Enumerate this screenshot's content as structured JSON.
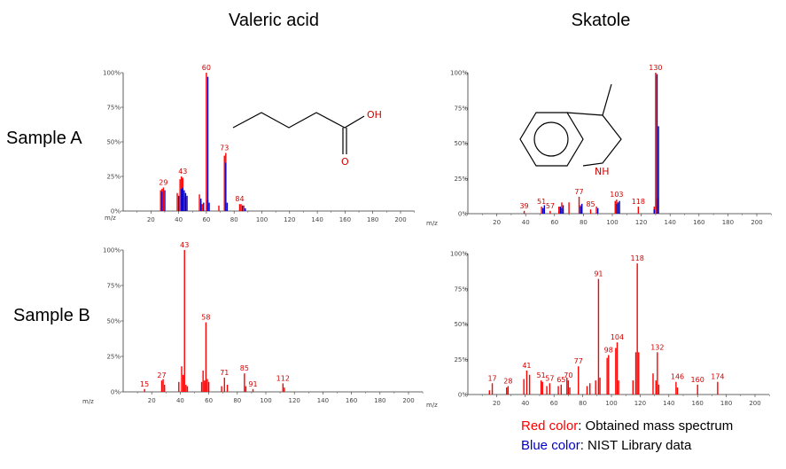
{
  "columns": [
    "Valeric acid",
    "Skatole"
  ],
  "rows": [
    "Sample A",
    "Sample B"
  ],
  "legend": {
    "red_word": "Red color",
    "red_rest": ": Obtained mass spectrum",
    "blue_word": "Blue color",
    "blue_rest": ": NIST Library data",
    "red_hex": "#ff0000",
    "blue_hex": "#0000cc"
  },
  "structures": {
    "acid_oh": "OH",
    "acid_o": "O",
    "indole_nh": "NH"
  },
  "chart_data": [
    {
      "type": "bar",
      "compound": "Valeric acid",
      "sample": "Sample A",
      "xlabel": "m/z",
      "xlim": [
        0,
        210
      ],
      "xticks": [
        20,
        40,
        60,
        80,
        100,
        120,
        140,
        160,
        180,
        200
      ],
      "ylim": [
        0,
        100
      ],
      "yticks": [
        "0%",
        "25%",
        "50%",
        "75%",
        "100%"
      ],
      "series": [
        {
          "name": "Obtained",
          "color": "#ff0000",
          "x": [
            27,
            28,
            29,
            39,
            41,
            42,
            43,
            45,
            55,
            56,
            57,
            60,
            61,
            69,
            73,
            74,
            84,
            85,
            87
          ],
          "y": [
            15,
            16,
            17,
            13,
            23,
            25,
            24,
            10,
            12,
            7,
            5,
            100,
            8,
            4,
            40,
            42,
            5,
            5,
            4
          ]
        },
        {
          "name": "NIST",
          "color": "#0000cc",
          "x": [
            27,
            29,
            39,
            41,
            42,
            43,
            44,
            45,
            55,
            57,
            60,
            61,
            73,
            74,
            85,
            87
          ],
          "y": [
            14,
            15,
            11,
            16,
            17,
            15,
            13,
            11,
            9,
            6,
            97,
            6,
            35,
            6,
            4,
            2
          ]
        }
      ],
      "peak_labels": [
        {
          "x": 29,
          "y": 17,
          "label": "29"
        },
        {
          "x": 43,
          "y": 25,
          "label": "43"
        },
        {
          "x": 60,
          "y": 100,
          "label": "60"
        },
        {
          "x": 73,
          "y": 42,
          "label": "73"
        },
        {
          "x": 84,
          "y": 5,
          "label": "84"
        }
      ]
    },
    {
      "type": "bar",
      "compound": "Skatole",
      "sample": "Sample A",
      "xlabel": "m/z",
      "xlim": [
        0,
        210
      ],
      "xticks": [
        20,
        40,
        60,
        80,
        100,
        120,
        140,
        160,
        180,
        200
      ],
      "ylim": [
        0,
        100
      ],
      "yticks": [
        "0%",
        "25%",
        "50%",
        "75%",
        "100%"
      ],
      "series": [
        {
          "name": "Obtained",
          "color": "#ff0000",
          "x": [
            39,
            51,
            52,
            57,
            63,
            65,
            70,
            77,
            78,
            85,
            89,
            102,
            103,
            118,
            129,
            130,
            131
          ],
          "y": [
            2,
            5,
            4,
            2,
            5,
            8,
            8,
            12,
            6,
            3,
            5,
            9,
            10,
            5,
            5,
            100,
            11
          ]
        },
        {
          "name": "NIST",
          "color": "#0000cc",
          "x": [
            51,
            52,
            63,
            64,
            65,
            77,
            78,
            89,
            102,
            103,
            104,
            128,
            130,
            131
          ],
          "y": [
            4,
            6,
            5,
            4,
            6,
            5,
            7,
            4,
            7,
            8,
            9,
            3,
            99,
            62
          ]
        }
      ],
      "peak_labels": [
        {
          "x": 39,
          "y": 2,
          "label": "39"
        },
        {
          "x": 51,
          "y": 5,
          "label": "51"
        },
        {
          "x": 57,
          "y": 2,
          "label": "57"
        },
        {
          "x": 77,
          "y": 12,
          "label": "77"
        },
        {
          "x": 85,
          "y": 3,
          "label": "85"
        },
        {
          "x": 103,
          "y": 10,
          "label": "103"
        },
        {
          "x": 118,
          "y": 5,
          "label": "118"
        },
        {
          "x": 130,
          "y": 100,
          "label": "130"
        }
      ]
    },
    {
      "type": "bar",
      "compound": "Valeric acid",
      "sample": "Sample B",
      "xlabel": "m/z",
      "xlim": [
        0,
        210
      ],
      "xticks": [
        20,
        40,
        60,
        80,
        100,
        120,
        140,
        160,
        180,
        200
      ],
      "ylim": [
        0,
        100
      ],
      "yticks": [
        "0%",
        "25%",
        "50%",
        "75%",
        "100%"
      ],
      "series": [
        {
          "name": "Obtained",
          "color": "#ff0000",
          "x": [
            15,
            27,
            28,
            29,
            39,
            41,
            42,
            43,
            44,
            45,
            55,
            56,
            57,
            58,
            59,
            60,
            69,
            71,
            73,
            85,
            86,
            91,
            112,
            113
          ],
          "y": [
            2,
            8,
            9,
            5,
            7,
            18,
            12,
            100,
            5,
            4,
            7,
            15,
            8,
            49,
            9,
            7,
            4,
            10,
            5,
            13,
            4,
            2,
            6,
            3
          ]
        }
      ],
      "peak_labels": [
        {
          "x": 15,
          "y": 2,
          "label": "15"
        },
        {
          "x": 27,
          "y": 8,
          "label": "27"
        },
        {
          "x": 43,
          "y": 100,
          "label": "43"
        },
        {
          "x": 58,
          "y": 49,
          "label": "58"
        },
        {
          "x": 71,
          "y": 10,
          "label": "71"
        },
        {
          "x": 85,
          "y": 13,
          "label": "85"
        },
        {
          "x": 91,
          "y": 2,
          "label": "91"
        },
        {
          "x": 112,
          "y": 6,
          "label": "112"
        }
      ]
    },
    {
      "type": "bar",
      "compound": "Skatole",
      "sample": "Sample B",
      "xlabel": "m/z",
      "xlim": [
        0,
        210
      ],
      "xticks": [
        20,
        40,
        60,
        80,
        100,
        120,
        140,
        160,
        180,
        200
      ],
      "ylim": [
        0,
        100
      ],
      "yticks": [
        "0%",
        "25%",
        "50%",
        "75%",
        "100%"
      ],
      "series": [
        {
          "name": "Obtained",
          "color": "#ff0000",
          "x": [
            15,
            17,
            27,
            28,
            39,
            41,
            43,
            51,
            52,
            55,
            57,
            63,
            65,
            69,
            70,
            71,
            77,
            83,
            85,
            89,
            91,
            92,
            97,
            98,
            103,
            104,
            105,
            115,
            117,
            118,
            119,
            129,
            131,
            132,
            133,
            145,
            146,
            160,
            174
          ],
          "y": [
            3,
            8,
            5,
            6,
            11,
            17,
            14,
            10,
            9,
            6,
            8,
            6,
            7,
            12,
            10,
            5,
            20,
            6,
            8,
            10,
            82,
            12,
            26,
            28,
            33,
            37,
            10,
            10,
            30,
            93,
            30,
            15,
            10,
            30,
            7,
            9,
            5,
            7,
            9
          ]
        }
      ],
      "peak_labels": [
        {
          "x": 17,
          "y": 8,
          "label": "17"
        },
        {
          "x": 28,
          "y": 6,
          "label": "28"
        },
        {
          "x": 41,
          "y": 17,
          "label": "41"
        },
        {
          "x": 51,
          "y": 10,
          "label": "51"
        },
        {
          "x": 57,
          "y": 8,
          "label": "57"
        },
        {
          "x": 65,
          "y": 7,
          "label": "65"
        },
        {
          "x": 70,
          "y": 10,
          "label": "70"
        },
        {
          "x": 77,
          "y": 20,
          "label": "77"
        },
        {
          "x": 91,
          "y": 82,
          "label": "91"
        },
        {
          "x": 98,
          "y": 28,
          "label": "98"
        },
        {
          "x": 104,
          "y": 37,
          "label": "104"
        },
        {
          "x": 118,
          "y": 93,
          "label": "118"
        },
        {
          "x": 132,
          "y": 30,
          "label": "132"
        },
        {
          "x": 146,
          "y": 9,
          "label": "146"
        },
        {
          "x": 160,
          "y": 7,
          "label": "160"
        },
        {
          "x": 174,
          "y": 9,
          "label": "174"
        }
      ]
    }
  ]
}
